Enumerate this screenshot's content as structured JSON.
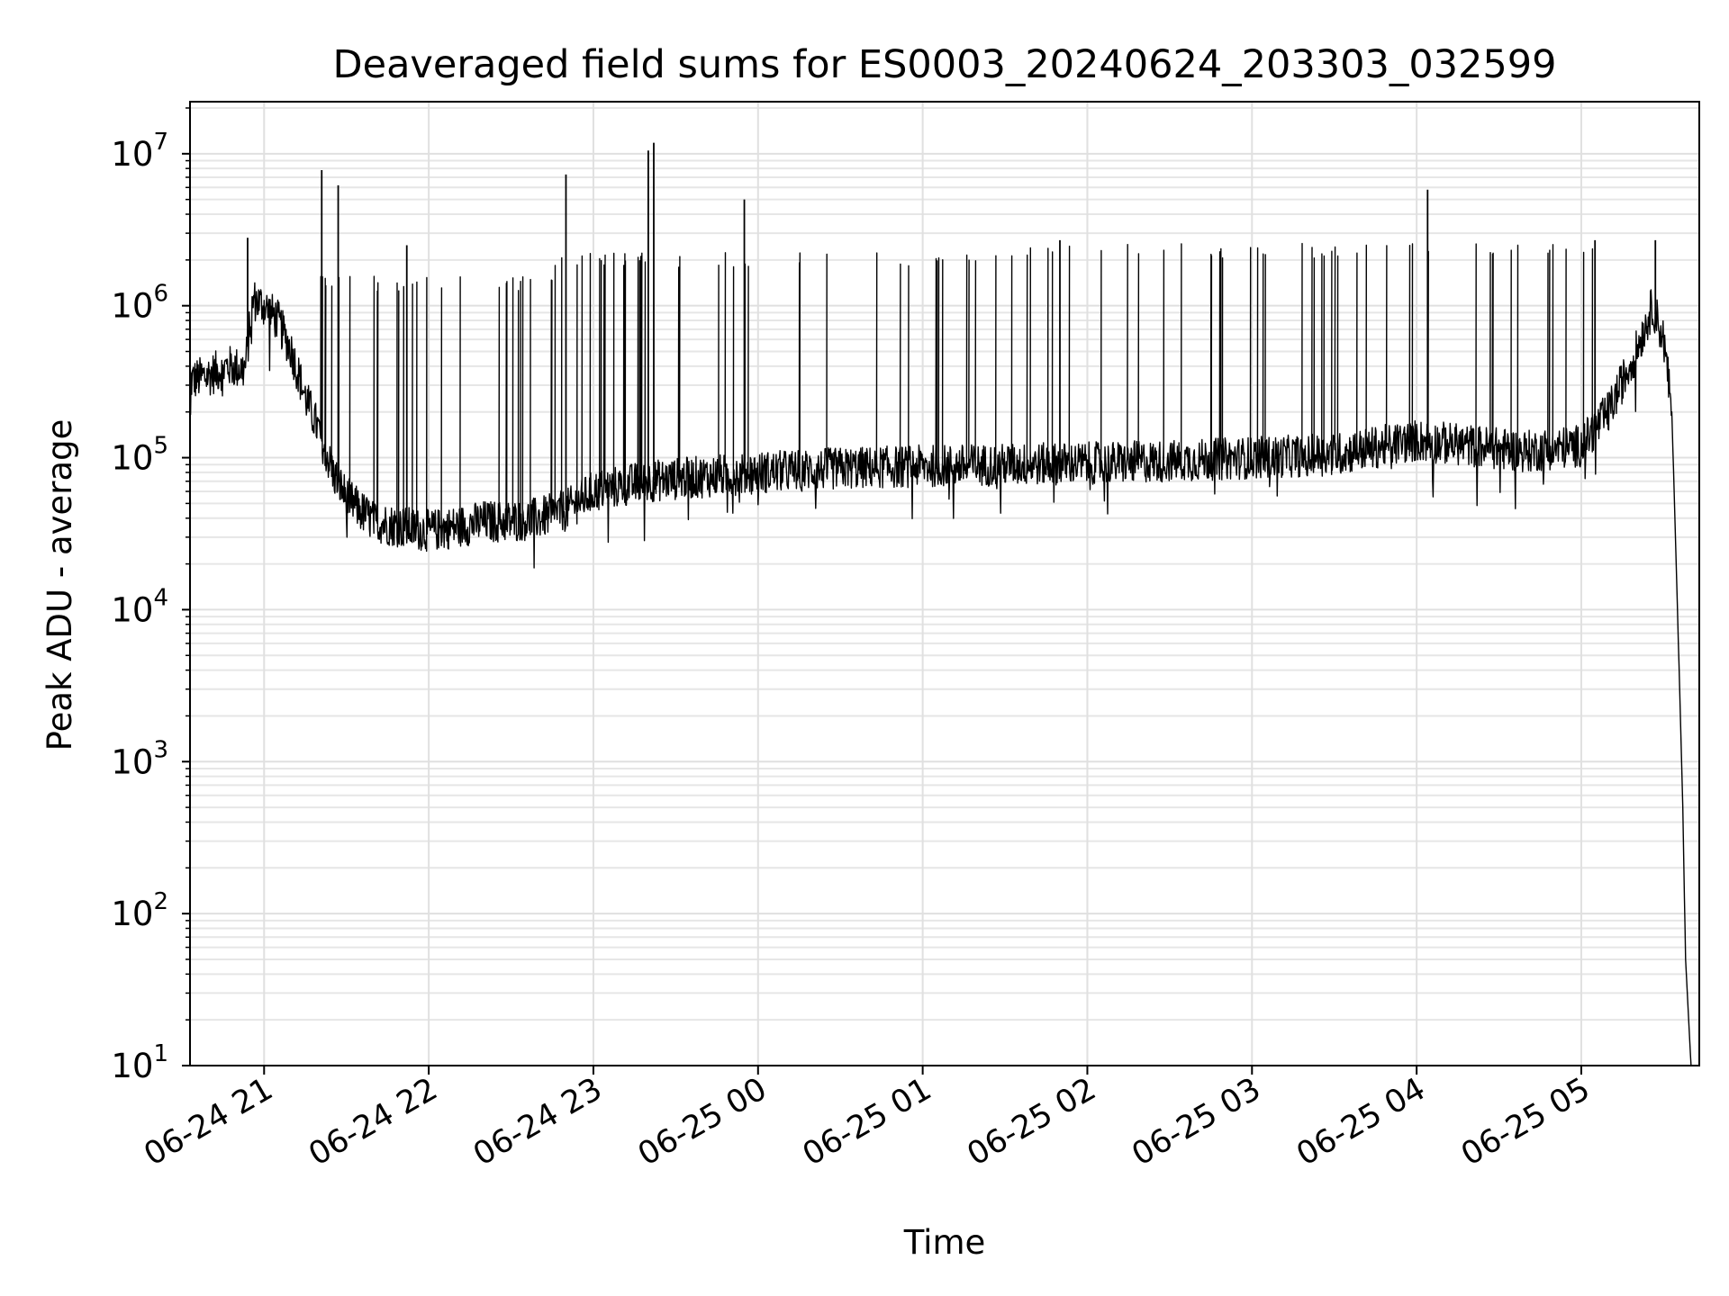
{
  "chart_data": {
    "type": "line",
    "title": "Deaveraged field sums for ES0003_20240624_203303_032599",
    "xlabel": "Time",
    "ylabel": "Peak ADU - average",
    "yscale": "log",
    "ylim": [
      10,
      22000000
    ],
    "xlim": [
      "2024-06-24 20:33",
      "2024-06-25 05:43"
    ],
    "grid": "on (major and minor)",
    "color": "#000000",
    "x_ticks": [
      {
        "t": "2024-06-24 21:00",
        "label": "06-24 21"
      },
      {
        "t": "2024-06-24 22:00",
        "label": "06-24 22"
      },
      {
        "t": "2024-06-24 23:00",
        "label": "06-24 23"
      },
      {
        "t": "2024-06-25 00:00",
        "label": "06-25 00"
      },
      {
        "t": "2024-06-25 01:00",
        "label": "06-25 01"
      },
      {
        "t": "2024-06-25 02:00",
        "label": "06-25 02"
      },
      {
        "t": "2024-06-25 03:00",
        "label": "06-25 03"
      },
      {
        "t": "2024-06-25 04:00",
        "label": "06-25 04"
      },
      {
        "t": "2024-06-25 05:00",
        "label": "06-25 05"
      }
    ],
    "y_ticks": [
      {
        "value": 10,
        "base": "10",
        "exp": "1"
      },
      {
        "value": 100,
        "base": "10",
        "exp": "2"
      },
      {
        "value": 1000,
        "base": "10",
        "exp": "3"
      },
      {
        "value": 10000,
        "base": "10",
        "exp": "4"
      },
      {
        "value": 100000,
        "base": "10",
        "exp": "5"
      },
      {
        "value": 1000000,
        "base": "10",
        "exp": "6"
      },
      {
        "value": 10000000,
        "base": "10",
        "exp": "7"
      }
    ],
    "series": [
      {
        "x": [
          "2024-06-24 20:33",
          "2024-06-24 20:40",
          "2024-06-24 20:47",
          "2024-06-24 20:53",
          "2024-06-24 20:56",
          "2024-06-24 21:00",
          "2024-06-24 21:05",
          "2024-06-24 21:10",
          "2024-06-24 21:15",
          "2024-06-24 21:20",
          "2024-06-24 21:25",
          "2024-06-24 21:30",
          "2024-06-24 21:35",
          "2024-06-24 21:40",
          "2024-06-24 21:50",
          "2024-06-24 22:00",
          "2024-06-24 22:10",
          "2024-06-24 22:20",
          "2024-06-24 22:30",
          "2024-06-24 22:40",
          "2024-06-24 22:50",
          "2024-06-24 23:00",
          "2024-06-24 23:20",
          "2024-06-24 23:40",
          "2024-06-25 00:00",
          "2024-06-25 00:30",
          "2024-06-25 01:00",
          "2024-06-25 01:30",
          "2024-06-25 02:00",
          "2024-06-25 02:30",
          "2024-06-25 03:00",
          "2024-06-25 03:30",
          "2024-06-25 04:00",
          "2024-06-25 04:20",
          "2024-06-25 04:40",
          "2024-06-25 05:00",
          "2024-06-25 05:10",
          "2024-06-25 05:20",
          "2024-06-25 05:26",
          "2024-06-25 05:30",
          "2024-06-25 05:33",
          "2024-06-25 05:35",
          "2024-06-25 05:37",
          "2024-06-25 05:38",
          "2024-06-25 05:40"
        ],
        "y": [
          320000,
          350000,
          400000,
          380000,
          1100000,
          1000000,
          800000,
          500000,
          250000,
          150000,
          80000,
          55000,
          45000,
          38000,
          35000,
          33000,
          35000,
          38000,
          38000,
          40000,
          45000,
          60000,
          70000,
          75000,
          80000,
          85000,
          88000,
          90000,
          92000,
          95000,
          100000,
          105000,
          130000,
          120000,
          110000,
          120000,
          200000,
          500000,
          1000000,
          600000,
          200000,
          11000,
          500,
          50,
          10
        ]
      }
    ],
    "spikes": [
      {
        "x": "2024-06-24 20:54",
        "y": 2800000
      },
      {
        "x": "2024-06-24 21:21",
        "y": 7800000
      },
      {
        "x": "2024-06-24 21:27",
        "y": 6200000
      },
      {
        "x": "2024-06-24 21:52",
        "y": 2500000
      },
      {
        "x": "2024-06-24 22:50",
        "y": 7300000
      },
      {
        "x": "2024-06-24 23:20",
        "y": 10500000
      },
      {
        "x": "2024-06-24 23:22",
        "y": 11800000
      },
      {
        "x": "2024-06-24 23:55",
        "y": 5000000
      },
      {
        "x": "2024-06-25 01:50",
        "y": 2700000
      },
      {
        "x": "2024-06-25 04:04",
        "y": 5800000
      },
      {
        "x": "2024-06-25 05:05",
        "y": 2700000
      },
      {
        "x": "2024-06-25 05:27",
        "y": 2700000
      }
    ]
  }
}
